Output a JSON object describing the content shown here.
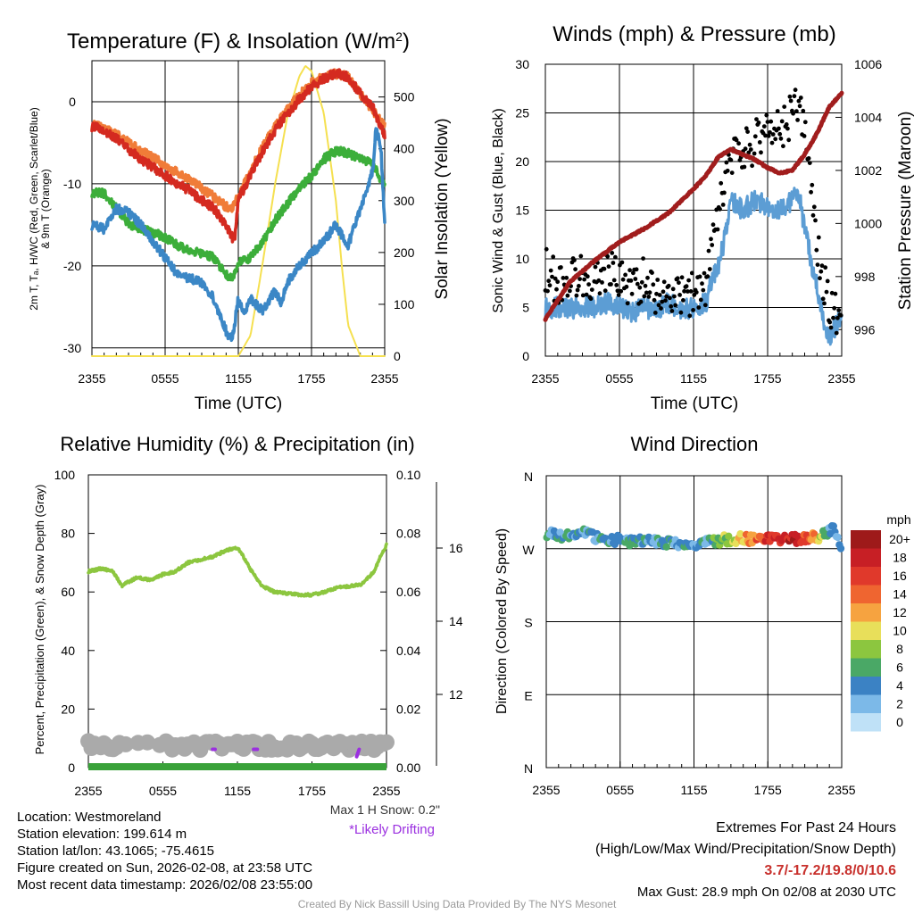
{
  "chart_data": [
    {
      "id": "temp",
      "type": "line",
      "title": "Temperature (F) & Insolation (W/m²)",
      "title_base": "Temperature (F) & Insolation (W/m",
      "title_sup": "2",
      "title_end": ")",
      "xlabel": "Time (UTC)",
      "ylabel_left": [
        "2m T, Tₐ, H/WC (Red, Green, Scarlet/Blue)",
        "& 9m T (Orange)"
      ],
      "ylabel_right": "Solar Insolation (Yellow)",
      "x_tick_labels": [
        "2355",
        "0555",
        "1155",
        "1755",
        "2355"
      ],
      "xlim": [
        0,
        24
      ],
      "ylim_left": [
        -31,
        5
      ],
      "yticks_left": [
        0,
        -10,
        -20,
        -30
      ],
      "ylim_right": [
        0,
        570
      ],
      "yticks_right": [
        0,
        100,
        200,
        300,
        400,
        500
      ],
      "series": [
        {
          "name": "Solar Insolation",
          "axis": "right",
          "color": "#f5e050",
          "x": [
            0,
            6,
            8,
            10,
            11,
            12,
            13,
            14,
            15,
            16,
            17,
            17.5,
            18,
            19,
            20,
            20.5,
            21,
            22,
            23,
            24
          ],
          "values": [
            0,
            0,
            0,
            0,
            0,
            0,
            40,
            180,
            330,
            460,
            540,
            560,
            550,
            470,
            300,
            170,
            60,
            0,
            0,
            0
          ]
        },
        {
          "name": "9m T",
          "axis": "left",
          "color": "#f07c38",
          "x": [
            0,
            1,
            2,
            3,
            4,
            5,
            6,
            7,
            8,
            9,
            10,
            11,
            11.5,
            12,
            13,
            14,
            15,
            16,
            17,
            18,
            19,
            20,
            21,
            22,
            23,
            23.5,
            24
          ],
          "values": [
            -2.8,
            -3.2,
            -4,
            -5,
            -6,
            -6.8,
            -7.8,
            -8.6,
            -9.5,
            -10.5,
            -11.6,
            -12.8,
            -13,
            -11.5,
            -8.5,
            -5.5,
            -3,
            -1,
            0.8,
            2.3,
            3,
            3.4,
            3,
            1,
            -1,
            -2,
            -3
          ]
        },
        {
          "name": "2m T",
          "axis": "left",
          "color": "#d42a20",
          "x": [
            0,
            1,
            2,
            3,
            4,
            5,
            6,
            7,
            8,
            9,
            10,
            11,
            11.5,
            11.7,
            12,
            13,
            14,
            15,
            16,
            17,
            18,
            19,
            20,
            21,
            22,
            23,
            23.5,
            24
          ],
          "values": [
            -3,
            -3.5,
            -4.5,
            -5.8,
            -7,
            -8,
            -9,
            -10,
            -10.8,
            -12,
            -13,
            -15,
            -16.5,
            -17,
            -12,
            -9,
            -6,
            -3.5,
            -1.5,
            0.3,
            1.8,
            2.8,
            3.5,
            3,
            1,
            -0.5,
            -2.5,
            -4
          ]
        },
        {
          "name": "Td",
          "axis": "left",
          "color": "#3cae3a",
          "x": [
            0,
            1,
            2,
            3,
            4,
            5,
            6,
            7,
            8,
            9,
            10,
            11,
            11.5,
            12,
            13,
            14,
            15,
            16,
            17,
            18,
            19,
            20,
            21,
            22,
            23,
            23.5,
            24
          ],
          "values": [
            -11,
            -11.2,
            -13,
            -14.8,
            -15.5,
            -16,
            -16.5,
            -17.5,
            -18,
            -18.5,
            -19,
            -21,
            -21.5,
            -19.5,
            -19,
            -17,
            -14.5,
            -12.5,
            -10.5,
            -9,
            -7,
            -6,
            -6.3,
            -7,
            -7.5,
            -9,
            -10
          ]
        },
        {
          "name": "H/WC",
          "axis": "left",
          "color": "#3b87c6",
          "x": [
            0,
            1,
            2,
            3,
            4,
            5,
            6,
            7,
            8,
            9,
            10,
            10.5,
            11,
            11.5,
            12,
            12.5,
            13,
            14,
            15,
            15.5,
            16,
            17,
            18,
            19,
            20,
            21,
            22,
            23,
            23.3,
            23.7,
            24
          ],
          "values": [
            -15,
            -15.5,
            -13,
            -13.5,
            -15,
            -17,
            -19,
            -21,
            -21.5,
            -22,
            -24,
            -26,
            -28,
            -29,
            -24,
            -26,
            -24,
            -25.5,
            -23,
            -24.5,
            -22,
            -20,
            -18.5,
            -17,
            -15,
            -17.5,
            -13,
            -8.5,
            -3,
            -6,
            -15
          ]
        }
      ]
    },
    {
      "id": "wind",
      "type": "line",
      "title": "Winds (mph) & Pressure (mb)",
      "xlabel": "Time (UTC)",
      "ylabel_left": "Sonic Wind & Gust (Blue, Black)",
      "ylabel_right": "Station Pressure (Maroon)",
      "x_tick_labels": [
        "2355",
        "0555",
        "1155",
        "1755",
        "2355"
      ],
      "xlim": [
        0,
        24
      ],
      "ylim_left": [
        0,
        30
      ],
      "yticks_left": [
        0,
        5,
        10,
        15,
        20,
        25,
        30
      ],
      "ylim_right": [
        995,
        1006
      ],
      "yticks_right": [
        996,
        998,
        1000,
        1002,
        1004,
        1006
      ],
      "series": [
        {
          "name": "Sonic Wind",
          "axis": "left",
          "color": "#5c9dd4",
          "x": [
            0,
            1,
            2,
            3,
            4,
            5,
            6,
            7,
            8,
            9,
            10,
            11,
            12,
            13,
            13.5,
            14,
            14.5,
            15,
            16,
            17,
            18,
            19,
            20,
            20.5,
            21,
            21.5,
            22,
            22.5,
            23,
            23.5,
            24
          ],
          "values": [
            5,
            5,
            4.8,
            5.2,
            5,
            5.5,
            5.2,
            4.5,
            5,
            4.8,
            5.5,
            4.8,
            5,
            5.5,
            8,
            9,
            12,
            16,
            15,
            16,
            15.5,
            15,
            16,
            17,
            13,
            10,
            7,
            4,
            2,
            3,
            4.5
          ]
        },
        {
          "name": "Gust",
          "axis": "left",
          "color": "#000000",
          "x": [
            0,
            1,
            2,
            3,
            4,
            5,
            6,
            7,
            8,
            9,
            10,
            11,
            12,
            13,
            13.5,
            14,
            14.5,
            15,
            16,
            17,
            18,
            19,
            20,
            20.5,
            21,
            21.5,
            22,
            22.5,
            23,
            23.5,
            24
          ],
          "values": [
            9,
            7.5,
            8,
            8.5,
            7.5,
            9,
            8,
            7,
            8,
            6.5,
            6.5,
            6,
            6.5,
            7,
            11,
            14,
            18,
            20,
            21,
            22,
            24,
            23,
            25,
            26,
            23,
            18,
            11,
            8,
            5,
            4.5,
            5
          ]
        },
        {
          "name": "Station Pressure",
          "axis": "right",
          "color": "#a11d1d",
          "x": [
            0,
            2,
            4,
            6,
            8,
            10,
            12,
            13,
            14,
            15,
            16,
            17,
            18,
            19,
            20,
            21,
            22,
            23,
            24
          ],
          "values": [
            996.4,
            997.8,
            998.6,
            999.3,
            999.8,
            1000.4,
            1001.3,
            1001.8,
            1002.5,
            1002.8,
            1002.6,
            1002.4,
            1002.1,
            1001.9,
            1002,
            1002.6,
            1003.4,
            1004.4,
            1004.9
          ]
        }
      ]
    },
    {
      "id": "rh",
      "type": "line",
      "title": "Relative Humidity (%) & Precipitation (in)",
      "xlabel": "",
      "ylabel_left": "Percent, Precipitation (Green), & Snow Depth (Gray)",
      "x_tick_labels": [
        "2355",
        "0555",
        "1155",
        "1755",
        "2355"
      ],
      "xlim": [
        0,
        24
      ],
      "ylim_left": [
        0,
        100
      ],
      "yticks_left": [
        0,
        20,
        40,
        60,
        80,
        100
      ],
      "ylim_right": [
        0,
        0.1
      ],
      "yticks_right": [
        "0.00",
        "0.02",
        "0.04",
        "0.06",
        "0.08",
        "0.10"
      ],
      "ylim_snow": [
        10,
        18
      ],
      "yticks_snow": [
        12,
        14,
        16
      ],
      "series": [
        {
          "name": "Relative Humidity",
          "axis": "left",
          "color": "#8cc63f",
          "x": [
            0,
            1,
            2,
            2.7,
            3,
            4,
            5,
            6,
            7,
            8,
            9,
            10,
            11,
            11.8,
            12,
            12.5,
            13,
            14,
            15,
            16,
            17,
            18,
            19,
            20,
            21,
            22,
            23,
            23.5,
            24
          ],
          "values": [
            67,
            68,
            67,
            62,
            63,
            65,
            64,
            66,
            67,
            70,
            71,
            72,
            74,
            75,
            75,
            72,
            68,
            62,
            60,
            59.5,
            59,
            59,
            60,
            61.5,
            62,
            62.5,
            67,
            72,
            76
          ]
        },
        {
          "name": "Precipitation",
          "axis": "right",
          "color": "#3aa23a",
          "x": [
            0,
            24
          ],
          "values": [
            0,
            0
          ]
        },
        {
          "name": "Snow Depth",
          "axis": "snow",
          "color": "#aaaaaa",
          "x": [
            0,
            6,
            9.5,
            10.5,
            12.5,
            13,
            16,
            19.5,
            20,
            21.5,
            22,
            24
          ],
          "values": [
            10.6,
            10.6,
            10.6,
            10.6,
            10.6,
            10.6,
            10.6,
            10.6,
            10.6,
            10.6,
            10.6,
            10.6
          ]
        },
        {
          "name": "Likely Drifting",
          "axis": "snow",
          "color": "#9b30e0",
          "x": [
            10,
            10.2,
            13.3,
            13.6,
            21.6,
            21.8
          ],
          "values": [
            10.5,
            10.5,
            10.5,
            10.5,
            10.3,
            10.5
          ]
        }
      ]
    },
    {
      "id": "dir",
      "type": "scatter",
      "title": "Wind Direction",
      "ylabel_left": "Direction (Colored By Speed)",
      "x_tick_labels": [
        "2355",
        "0555",
        "1155",
        "1755",
        "2355"
      ],
      "xlim": [
        0,
        24
      ],
      "ylim_left": [
        0,
        360
      ],
      "y_tick_labels": [
        "N",
        "W",
        "S",
        "E",
        "N"
      ],
      "y_tick_values": [
        360,
        270,
        180,
        90,
        0
      ],
      "colorbar_unit": "mph",
      "colorbar_labels": [
        "20+",
        "18",
        "16",
        "14",
        "12",
        "10",
        "8",
        "6",
        "4",
        "2",
        "0"
      ],
      "colorbar_colors": [
        "#9e1a1a",
        "#c71f25",
        "#e0392b",
        "#ef6530",
        "#f6a340",
        "#e8df5a",
        "#8cc63f",
        "#4aa866",
        "#3b82c4",
        "#7cb9e8",
        "#bfe1f7"
      ],
      "direction_profile_x": [
        0,
        1,
        2,
        3,
        4,
        5,
        6,
        7,
        8,
        9,
        10,
        11,
        12,
        13,
        14,
        15,
        16,
        17,
        18,
        19,
        20,
        21,
        22,
        23,
        23.3,
        23.7,
        24
      ],
      "direction_profile_deg": [
        290,
        285,
        288,
        292,
        283,
        280,
        281,
        279,
        280,
        278,
        276,
        274,
        273,
        277,
        280,
        282,
        283,
        281,
        282,
        281,
        282,
        283,
        284,
        290,
        300,
        285,
        270
      ],
      "speed_profile_x": [
        0,
        5,
        10,
        13,
        14,
        15,
        16,
        17,
        18,
        19,
        20,
        21,
        22,
        23,
        24
      ],
      "speed_profile_mph": [
        4,
        4,
        4,
        4,
        7,
        9,
        11,
        13,
        16,
        18,
        18,
        15,
        12,
        3,
        3
      ]
    }
  ],
  "footer": {
    "location": "Location: Westmoreland",
    "elevation": "Station elevation: 199.614 m",
    "latlon": "Station lat/lon: 43.1065; -75.4615",
    "created": "Figure created on Sun, 2026-02-08, at 23:58 UTC",
    "recent": "Most recent data timestamp: 2026/02/08 23:55:00",
    "max_snow": "Max 1 H Snow: 0.2\"",
    "drifting": "*Likely Drifting",
    "extremes_title": "Extremes For Past 24 Hours",
    "extremes_fields": "(High/Low/Max Wind/Precipitation/Snow Depth)",
    "extremes_values": "3.7/-17.2/19.8/0/10.6",
    "max_gust": "Max Gust: 28.9 mph On 02/08 at 2030 UTC",
    "credit": "Created By Nick Bassill Using Data Provided By The NYS Mesonet"
  },
  "colors": {
    "extremes": "#c8302c",
    "drifting": "#9b30e0",
    "credit": "#9a9a9a"
  }
}
